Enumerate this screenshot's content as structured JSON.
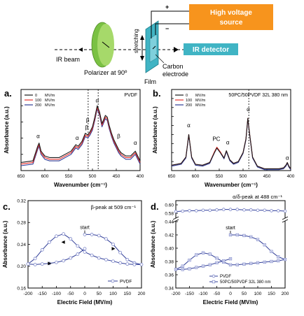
{
  "schematic": {
    "ir_beam": "IR beam",
    "polarizer": "Polarizer at 90º",
    "stretching": "stretching",
    "film": "Film",
    "electrode_line1": "Carbon",
    "electrode_line2": "electrode",
    "hv_line1": "High voltage",
    "hv_line2": "source",
    "detector": "IR detector",
    "plus": "+",
    "minus": "−"
  },
  "colors": {
    "orange": "#f7941d",
    "teal": "#40b4c4",
    "green": "#7ac143",
    "black": "#1a1a1a",
    "red": "#e8322e",
    "blue": "#2f3c96",
    "marker": "#7b85c9"
  },
  "chart_data": [
    {
      "type": "line",
      "panel": "a.",
      "label": "PVDF",
      "xlabel": "Wavenumber (cm⁻¹)",
      "ylabel": "Absorbance (a.u.)",
      "xlim": [
        650,
        400
      ],
      "ylim": [
        0,
        0.5
      ],
      "xticks": [
        650,
        600,
        550,
        500,
        450,
        400
      ],
      "yticks": [
        0.0,
        0.1,
        0.2,
        0.3,
        0.4,
        0.5
      ],
      "legend_position": "top-left",
      "vlines": [
        509,
        488
      ],
      "annotations": [
        {
          "text": "α",
          "x": 614,
          "y": 0.2
        },
        {
          "text": "α",
          "x": 532,
          "y": 0.19
        },
        {
          "text": "β",
          "x": 512,
          "y": 0.255
        },
        {
          "text": "β",
          "x": 510,
          "y": 0.3
        },
        {
          "text": "α",
          "x": 490,
          "y": 0.42
        },
        {
          "text": "β",
          "x": 445,
          "y": 0.2
        },
        {
          "text": "α",
          "x": 410,
          "y": 0.16
        }
      ],
      "series": [
        {
          "name": "0",
          "unit": "MV/m",
          "x": [
            650,
            625,
            615,
            612,
            608,
            600,
            590,
            570,
            545,
            535,
            530,
            522,
            515,
            510,
            505,
            500,
            495,
            490,
            485,
            480,
            477,
            473,
            469,
            465,
            460,
            455,
            450,
            445,
            440,
            430,
            420,
            410,
            405,
            400
          ],
          "y": [
            0.05,
            0.06,
            0.15,
            0.17,
            0.12,
            0.09,
            0.08,
            0.08,
            0.12,
            0.16,
            0.15,
            0.18,
            0.23,
            0.22,
            0.24,
            0.27,
            0.33,
            0.4,
            0.36,
            0.29,
            0.31,
            0.34,
            0.33,
            0.28,
            0.23,
            0.19,
            0.16,
            0.13,
            0.11,
            0.09,
            0.09,
            0.12,
            0.09,
            0.06
          ]
        },
        {
          "name": "100",
          "unit": "MV/m",
          "x": [
            650,
            625,
            615,
            612,
            608,
            600,
            590,
            570,
            545,
            535,
            530,
            522,
            515,
            510,
            505,
            500,
            495,
            490,
            485,
            480,
            477,
            473,
            469,
            465,
            460,
            455,
            450,
            445,
            440,
            430,
            420,
            410,
            405,
            400
          ],
          "y": [
            0.04,
            0.05,
            0.14,
            0.16,
            0.11,
            0.08,
            0.07,
            0.07,
            0.11,
            0.15,
            0.14,
            0.17,
            0.22,
            0.21,
            0.23,
            0.26,
            0.32,
            0.39,
            0.35,
            0.28,
            0.3,
            0.33,
            0.32,
            0.27,
            0.22,
            0.18,
            0.15,
            0.12,
            0.1,
            0.08,
            0.08,
            0.11,
            0.08,
            0.05
          ]
        },
        {
          "name": "200",
          "unit": "MV/m",
          "x": [
            650,
            625,
            615,
            612,
            608,
            600,
            590,
            570,
            545,
            535,
            530,
            522,
            515,
            510,
            505,
            500,
            495,
            490,
            485,
            480,
            477,
            473,
            469,
            465,
            460,
            455,
            450,
            445,
            440,
            430,
            420,
            410,
            405,
            400
          ],
          "y": [
            0.03,
            0.04,
            0.13,
            0.15,
            0.1,
            0.07,
            0.06,
            0.06,
            0.1,
            0.14,
            0.13,
            0.16,
            0.21,
            0.2,
            0.22,
            0.25,
            0.31,
            0.38,
            0.34,
            0.27,
            0.29,
            0.32,
            0.31,
            0.26,
            0.21,
            0.17,
            0.14,
            0.11,
            0.09,
            0.07,
            0.07,
            0.1,
            0.07,
            0.04
          ]
        }
      ]
    },
    {
      "type": "line",
      "panel": "b.",
      "label": "50PC/50PVDF 32L 380 nm",
      "xlabel": "Wavenumber (cm⁻¹)",
      "ylabel": "Absorbance (a.u.)",
      "xlim": [
        650,
        400
      ],
      "ylim": [
        0,
        0.9
      ],
      "xticks": [
        650,
        600,
        550,
        500,
        450,
        400
      ],
      "yticks": [
        0.0,
        0.1,
        0.2,
        0.3,
        0.4,
        0.5,
        0.6,
        0.7,
        0.8,
        0.9
      ],
      "legend_position": "top-left",
      "vlines": [
        488
      ],
      "annotations": [
        {
          "text": "α",
          "x": 614,
          "y": 0.48
        },
        {
          "text": "PC",
          "x": 556,
          "y": 0.33
        },
        {
          "text": "α",
          "x": 532,
          "y": 0.29
        },
        {
          "text": "α",
          "x": 489,
          "y": 0.66
        },
        {
          "text": "α",
          "x": 407,
          "y": 0.12
        }
      ],
      "series": [
        {
          "name": "0",
          "unit": "MV/m",
          "x": [
            650,
            630,
            620,
            614,
            608,
            600,
            585,
            570,
            560,
            555,
            548,
            540,
            535,
            528,
            520,
            510,
            500,
            494,
            490,
            486,
            480,
            470,
            455,
            440,
            425,
            415,
            410,
            407,
            404,
            400
          ],
          "y": [
            0.06,
            0.08,
            0.15,
            0.4,
            0.15,
            0.07,
            0.06,
            0.09,
            0.2,
            0.25,
            0.2,
            0.14,
            0.22,
            0.12,
            0.08,
            0.1,
            0.2,
            0.35,
            0.58,
            0.4,
            0.15,
            0.05,
            0.02,
            0.02,
            0.02,
            0.03,
            0.06,
            0.09,
            0.05,
            0.02
          ]
        },
        {
          "name": "100",
          "unit": "MV/m",
          "x": [
            650,
            630,
            620,
            614,
            608,
            600,
            585,
            570,
            560,
            555,
            548,
            540,
            535,
            528,
            520,
            510,
            500,
            494,
            490,
            486,
            480,
            470,
            455,
            440,
            425,
            415,
            410,
            407,
            404,
            400
          ],
          "y": [
            0.06,
            0.08,
            0.15,
            0.4,
            0.15,
            0.07,
            0.06,
            0.09,
            0.21,
            0.26,
            0.21,
            0.14,
            0.22,
            0.12,
            0.08,
            0.1,
            0.2,
            0.35,
            0.58,
            0.4,
            0.15,
            0.05,
            0.02,
            0.02,
            0.02,
            0.03,
            0.06,
            0.09,
            0.05,
            0.02
          ]
        },
        {
          "name": "200",
          "unit": "MV/m",
          "x": [
            650,
            630,
            620,
            614,
            608,
            600,
            585,
            570,
            560,
            555,
            548,
            540,
            535,
            528,
            520,
            510,
            500,
            494,
            490,
            486,
            480,
            470,
            455,
            440,
            425,
            415,
            410,
            407,
            404,
            400
          ],
          "y": [
            0.05,
            0.07,
            0.14,
            0.39,
            0.14,
            0.06,
            0.05,
            0.08,
            0.2,
            0.25,
            0.2,
            0.13,
            0.21,
            0.11,
            0.07,
            0.09,
            0.19,
            0.34,
            0.57,
            0.39,
            0.14,
            0.04,
            0.01,
            0.01,
            0.01,
            0.02,
            0.05,
            0.08,
            0.04,
            0.01
          ]
        }
      ]
    },
    {
      "type": "line",
      "panel": "c.",
      "label": "β-peak at 509 cm⁻¹",
      "xlabel": "Electric Field (MV/m)",
      "ylabel": "Absorbance (a.u.)",
      "xlim": [
        -200,
        200
      ],
      "ylim": [
        0.16,
        0.32
      ],
      "xticks": [
        -200,
        -150,
        -100,
        -50,
        0,
        50,
        100,
        150,
        200
      ],
      "yticks": [
        0.16,
        0.2,
        0.24,
        0.28,
        0.32
      ],
      "legend_position": "bottom-right",
      "start_label": "start",
      "start_point": [
        0,
        0.258
      ],
      "series": [
        {
          "name": "PVDF",
          "x": [
            0,
            25,
            50,
            75,
            100,
            125,
            150,
            175,
            200,
            175,
            150,
            125,
            100,
            75,
            50,
            25,
            0,
            -25,
            -50,
            -75,
            -100,
            -125,
            -150,
            -175,
            -200,
            -175,
            -150,
            -125,
            -100,
            -75,
            -50,
            -25,
            0
          ],
          "y": [
            0.258,
            0.258,
            0.256,
            0.25,
            0.24,
            0.225,
            0.212,
            0.206,
            0.203,
            0.203,
            0.204,
            0.206,
            0.209,
            0.212,
            0.215,
            0.22,
            0.226,
            0.237,
            0.25,
            0.259,
            0.255,
            0.244,
            0.23,
            0.214,
            0.204,
            0.203,
            0.204,
            0.205,
            0.207,
            0.21,
            0.215,
            0.222,
            0.232
          ]
        }
      ]
    },
    {
      "type": "line",
      "panel": "d.",
      "label": "α/δ-peak at 488 cm⁻¹",
      "xlabel": "Electric Field (MV/m)",
      "ylabel": "Absorbance (a.u.)",
      "xlim": [
        -200,
        200
      ],
      "ylim_lower": [
        0.34,
        0.44
      ],
      "ylim_upper": [
        0.57,
        0.61
      ],
      "axis_break": true,
      "xticks": [
        -200,
        -150,
        -100,
        -50,
        0,
        50,
        100,
        150,
        200
      ],
      "yticks_lower": [
        0.34,
        0.36,
        0.38,
        0.4,
        0.42,
        0.44
      ],
      "yticks_upper": [
        0.58,
        0.6
      ],
      "legend_position": "bottom-right",
      "start_label": "start",
      "start_point": [
        0,
        0.42
      ],
      "series": [
        {
          "name": "PVDF",
          "x": [
            -200,
            -175,
            -150,
            -125,
            -100,
            -75,
            -50,
            -25,
            0,
            25,
            50,
            75,
            100,
            125,
            150,
            175,
            200
          ],
          "y": [
            0.584,
            0.585,
            0.586,
            0.586,
            0.587,
            0.587,
            0.588,
            0.589,
            0.589,
            0.589,
            0.588,
            0.588,
            0.587,
            0.587,
            0.586,
            0.586,
            0.585
          ]
        },
        {
          "name": "50PC/50PVDF 32L 380 nm",
          "x": [
            0,
            25,
            50,
            75,
            100,
            125,
            150,
            175,
            200,
            175,
            150,
            125,
            100,
            75,
            50,
            25,
            0,
            -25,
            -50,
            -75,
            -100,
            -125,
            -150,
            -175,
            -200,
            -175,
            -150,
            -125,
            -100,
            -75,
            -50,
            -25,
            0
          ],
          "y": [
            0.42,
            0.42,
            0.419,
            0.417,
            0.413,
            0.405,
            0.395,
            0.387,
            0.383,
            0.381,
            0.38,
            0.379,
            0.378,
            0.377,
            0.376,
            0.375,
            0.375,
            0.379,
            0.385,
            0.391,
            0.393,
            0.39,
            0.382,
            0.373,
            0.368,
            0.368,
            0.369,
            0.371,
            0.373,
            0.375,
            0.378,
            0.381,
            0.384
          ]
        }
      ]
    }
  ]
}
